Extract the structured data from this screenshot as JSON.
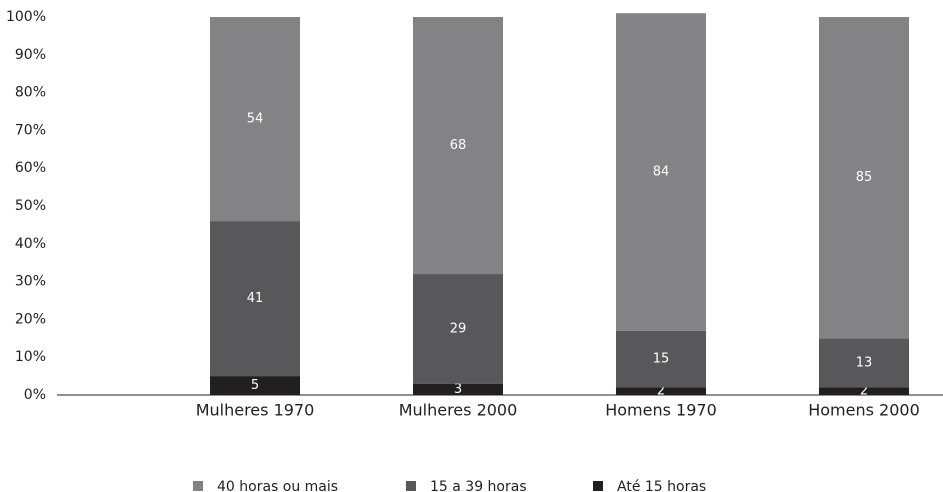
{
  "chart_data": {
    "type": "stacked_bar",
    "categories": [
      "Mulheres 1970",
      "Mulheres 2000",
      "Homens 1970",
      "Homens 2000"
    ],
    "series": [
      {
        "name": "Até 15 horas",
        "color": "#231f20",
        "values": [
          5,
          3,
          2,
          2
        ]
      },
      {
        "name": "15 a 39 horas",
        "color": "#58585a",
        "values": [
          41,
          29,
          15,
          13
        ]
      },
      {
        "name": "40 horas ou mais",
        "color": "#838386",
        "values": [
          54,
          68,
          84,
          85
        ]
      }
    ],
    "ylim": [
      0,
      100
    ],
    "yticks": [
      {
        "value": 0,
        "label": "0%"
      },
      {
        "value": 10,
        "label": "10%"
      },
      {
        "value": 20,
        "label": "20%"
      },
      {
        "value": 30,
        "label": "30%"
      },
      {
        "value": 40,
        "label": "40%"
      },
      {
        "value": 50,
        "label": "50%"
      },
      {
        "value": 60,
        "label": "60%"
      },
      {
        "value": 70,
        "label": "70%"
      },
      {
        "value": 80,
        "label": "80%"
      },
      {
        "value": 90,
        "label": "90%"
      },
      {
        "value": 100,
        "label": "100%"
      }
    ],
    "grid": false,
    "legend": "bottom"
  }
}
